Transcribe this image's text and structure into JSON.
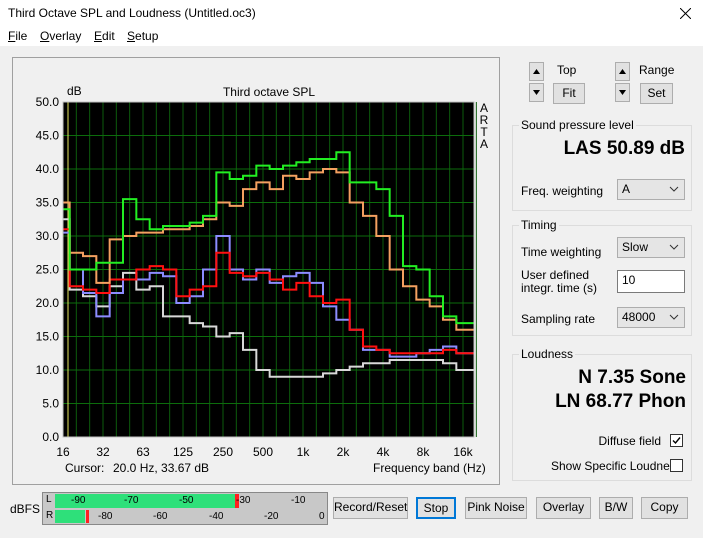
{
  "window": {
    "title": "Third Octave SPL and Loudness (Untitled.oc3)"
  },
  "menu": [
    "File",
    "Overlay",
    "Edit",
    "Setup"
  ],
  "chart_data": {
    "type": "line",
    "drawstyle": "steps",
    "title": "Third octave SPL",
    "y_label": "dB",
    "side_label": "ARTA",
    "x_label": "Frequency band (Hz)",
    "cursor_label": "Cursor:",
    "cursor_value": "20.0 Hz, 33.67 dB",
    "categories": [
      "16",
      null,
      null,
      "32",
      null,
      null,
      "63",
      null,
      null,
      "125",
      null,
      null,
      "250",
      null,
      null,
      "500",
      null,
      null,
      "1k",
      null,
      null,
      "2k",
      null,
      null,
      "4k",
      null,
      null,
      "8k",
      null,
      null,
      "16k",
      null
    ],
    "ylim": [
      0,
      50
    ],
    "yticks": [
      {
        "value": 0,
        "label": "0.0"
      },
      {
        "value": 5,
        "label": "5.0"
      },
      {
        "value": 10,
        "label": "10.0"
      },
      {
        "value": 15,
        "label": "15.0"
      },
      {
        "value": 20,
        "label": "20.0"
      },
      {
        "value": 25,
        "label": "25.0"
      },
      {
        "value": 30,
        "label": "30.0"
      },
      {
        "value": 35,
        "label": "35.0"
      },
      {
        "value": 40,
        "label": "40.0"
      },
      {
        "value": 45,
        "label": "45.0"
      },
      {
        "value": 50,
        "label": "50.0"
      }
    ],
    "grid": true,
    "series": [
      {
        "color": "#d8d8d8",
        "values": [
          32.5,
          22,
          21,
          19.5,
          22.5,
          24.5,
          22,
          22.5,
          18,
          18,
          17,
          16.5,
          15,
          15.5,
          13,
          10,
          9,
          9,
          9,
          9,
          9.5,
          10,
          10.5,
          11,
          11,
          11.5,
          11.5,
          11.5,
          11.5,
          11,
          10,
          10
        ]
      },
      {
        "color": "#8c8cff",
        "values": [
          30.5,
          25,
          21.5,
          18,
          21.5,
          23.5,
          23.5,
          24.5,
          24,
          20,
          21,
          25,
          30,
          25,
          23.5,
          25,
          23,
          24,
          24.5,
          23,
          19.5,
          17.5,
          16,
          13,
          13,
          12,
          12,
          12.5,
          13,
          13.5,
          12.5,
          12.5
        ]
      },
      {
        "color": "#ff1010",
        "values": [
          31,
          22.5,
          22,
          21.5,
          23.5,
          23.5,
          25,
          25.5,
          25,
          21,
          22,
          22.5,
          27.5,
          24.5,
          24,
          24.5,
          23.5,
          22,
          23,
          21,
          20,
          20.5,
          16,
          13.5,
          13,
          12.5,
          12.5,
          12.5,
          12.5,
          13,
          12.5,
          12.5
        ]
      },
      {
        "color": "#f4a060",
        "values": [
          35,
          27.5,
          27,
          23,
          29.5,
          30,
          30.5,
          30.5,
          31,
          31,
          31.5,
          32.5,
          35,
          34.5,
          37,
          38,
          37,
          39,
          38.5,
          39.5,
          40,
          39.5,
          35,
          33,
          30,
          25,
          22.5,
          20.5,
          19.5,
          17.5,
          16,
          16
        ]
      },
      {
        "color": "#22ee22",
        "values": [
          34,
          25,
          25,
          26,
          26,
          35.5,
          32.5,
          31,
          31.5,
          31.5,
          32,
          33,
          39.5,
          38.5,
          39,
          40.5,
          40,
          40.5,
          41,
          41.5,
          41.5,
          42.5,
          38,
          38,
          37,
          33,
          25.5,
          25,
          21,
          18,
          17,
          17
        ]
      }
    ]
  },
  "controls": {
    "top": {
      "label": "Top",
      "button": "Fit"
    },
    "range": {
      "label": "Range",
      "button": "Set"
    },
    "spl": {
      "group": "Sound pressure level",
      "reading": "LAS 50.89 dB",
      "weighting_label": "Freq. weighting",
      "weighting": "A"
    },
    "timing": {
      "group": "Timing",
      "time_weighting_label": "Time weighting",
      "time_weighting": "Slow",
      "integr_label": [
        "User defined",
        "integr. time (s)"
      ],
      "integr_time": "10",
      "rate_label": "Sampling rate",
      "rate": "48000"
    },
    "loudness": {
      "group": "Loudness",
      "sone": "N 7.35 Sone",
      "phon": "LN 68.77 Phon",
      "diffuse": "Diffuse field",
      "specific": "Show Specific Loudness"
    }
  },
  "meter": {
    "label": "dBFS",
    "channels": [
      "L",
      "R"
    ],
    "top_scale": [
      "-90",
      "-70",
      "-50",
      "-30",
      "-10"
    ],
    "bottom_scale": [
      "-80",
      "-60",
      "-40",
      "-20",
      "0"
    ]
  },
  "buttons": [
    "Record/Reset",
    "Stop",
    "Pink Noise",
    "Overlay",
    "B/W",
    "Copy"
  ]
}
